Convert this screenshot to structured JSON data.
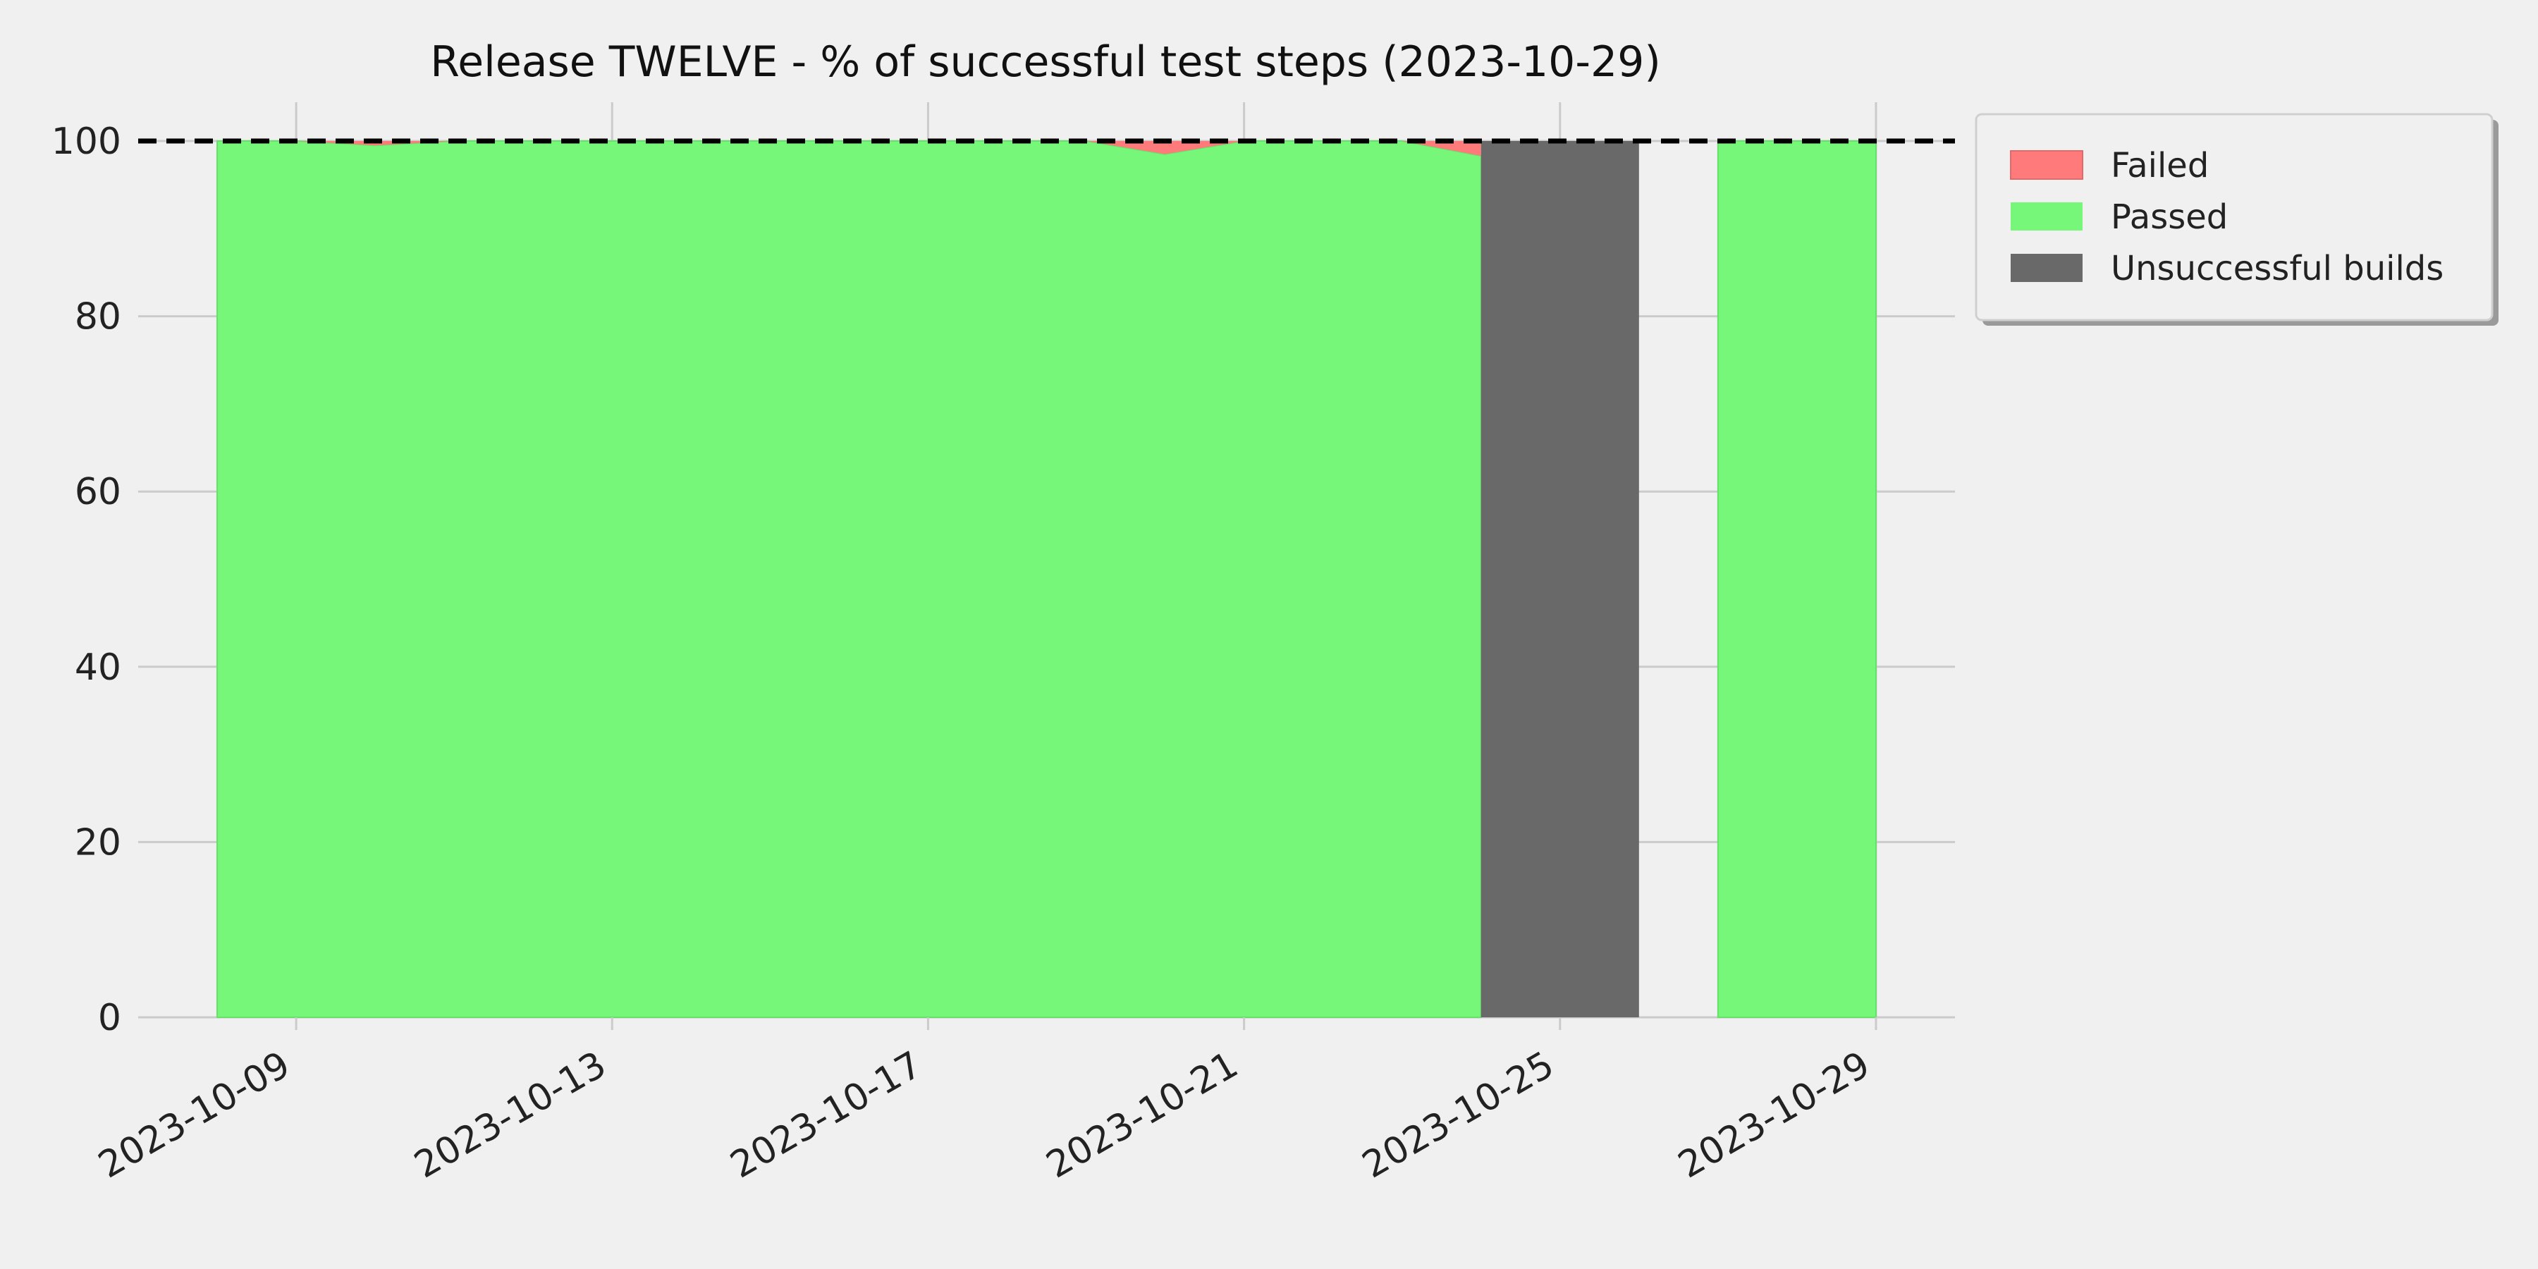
{
  "chart_data": {
    "type": "area",
    "title": "Release TWELVE - % of successful test steps (2023-10-29)",
    "xlabel": "",
    "ylabel": "",
    "ylim": [
      0,
      100
    ],
    "yticks": [
      0,
      20,
      40,
      60,
      80,
      100
    ],
    "xlim": [
      "2023-10-07",
      "2023-10-30"
    ],
    "xticks": [
      "2023-10-09",
      "2023-10-13",
      "2023-10-17",
      "2023-10-21",
      "2023-10-25",
      "2023-10-29"
    ],
    "grid": true,
    "reference_line": {
      "y": 100,
      "style": "dashed",
      "color": "#000000"
    },
    "x": [
      "2023-10-08",
      "2023-10-09",
      "2023-10-10",
      "2023-10-11",
      "2023-10-12",
      "2023-10-13",
      "2023-10-14",
      "2023-10-15",
      "2023-10-16",
      "2023-10-17",
      "2023-10-18",
      "2023-10-19",
      "2023-10-20",
      "2023-10-21",
      "2023-10-22",
      "2023-10-23",
      "2023-10-24",
      "2023-10-25",
      "2023-10-26",
      "2023-10-27",
      "2023-10-28",
      "2023-10-29"
    ],
    "series": [
      {
        "name": "Passed",
        "color": "#77f77a",
        "values": [
          100,
          100,
          99.5,
          100,
          100,
          100,
          100,
          100,
          100,
          100,
          100,
          100,
          98.5,
          100,
          100,
          100,
          98.3,
          null,
          null,
          100,
          100,
          100
        ]
      },
      {
        "name": "Failed",
        "color": "#ff7a7a",
        "values": [
          0,
          0,
          0.5,
          0,
          0,
          0,
          0,
          0,
          0,
          0,
          0,
          0,
          1.5,
          0,
          0,
          0,
          1.7,
          null,
          null,
          0,
          0,
          0
        ]
      }
    ],
    "unsuccessful_builds": {
      "name": "Unsuccessful builds",
      "color": "#696969",
      "ranges": [
        [
          "2023-10-24",
          "2023-10-26"
        ]
      ]
    },
    "legend": {
      "position": "outside-right-top",
      "entries": [
        "Failed",
        "Passed",
        "Unsuccessful builds"
      ]
    }
  }
}
